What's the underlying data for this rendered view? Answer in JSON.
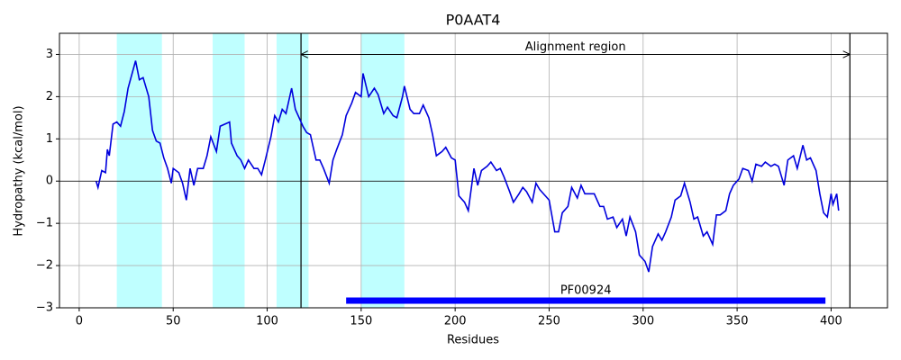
{
  "chart_data": {
    "type": "line",
    "title": "P0AAT4",
    "xlabel": "Residues",
    "ylabel": "Hydropathy (kcal/mol)",
    "xlim": [
      -10.5,
      430
    ],
    "ylim": [
      -3,
      3.5
    ],
    "xticks": [
      0,
      50,
      100,
      150,
      200,
      250,
      300,
      350,
      400
    ],
    "yticks": [
      {
        "value": -3,
        "label": "−3"
      },
      {
        "value": -2,
        "label": "−2"
      },
      {
        "value": -1,
        "label": "−1"
      },
      0,
      1,
      2,
      3
    ],
    "grid": true,
    "hline": 0,
    "regions": [
      [
        20,
        44
      ],
      [
        71,
        88
      ],
      [
        105,
        122
      ],
      [
        150,
        173
      ]
    ],
    "region_color": "#bfffff",
    "vlines": [
      118,
      410
    ],
    "annotation": {
      "text": "Alignment region",
      "x": [
        118,
        410
      ],
      "y": 3
    },
    "domain": {
      "name": "PF00924",
      "start": 142,
      "end": 397,
      "y": -2.83,
      "color": "#0000ff"
    },
    "series": [
      {
        "color": "#0000dd",
        "x": [
          9,
          10,
          12,
          14,
          15,
          16,
          18,
          20,
          22,
          24,
          26,
          30,
          32,
          34,
          37,
          39,
          41,
          43,
          45,
          47,
          49,
          50,
          53,
          55,
          57,
          59,
          61,
          63,
          66,
          68,
          70,
          73,
          75,
          80,
          81,
          84,
          86,
          88,
          90,
          93,
          95,
          97,
          99,
          102,
          104,
          106,
          108,
          110,
          113,
          115,
          117,
          119,
          121,
          123,
          126,
          128,
          130,
          133,
          135,
          137,
          140,
          142,
          145,
          147,
          150,
          151,
          154,
          157,
          159,
          162,
          164,
          167,
          169,
          172,
          173,
          176,
          178,
          181,
          183,
          186,
          188,
          190,
          193,
          195,
          198,
          200,
          202,
          205,
          207,
          210,
          212,
          214,
          217,
          219,
          222,
          224,
          226,
          229,
          231,
          234,
          236,
          238,
          241,
          243,
          245,
          248,
          250,
          253,
          255,
          257,
          260,
          262,
          265,
          267,
          269,
          272,
          274,
          277,
          279,
          281,
          284,
          286,
          289,
          291,
          293,
          296,
          298,
          301,
          303,
          305,
          308,
          310,
          312,
          315,
          317,
          320,
          322,
          325,
          327,
          329,
          332,
          334,
          337,
          339,
          341,
          344,
          346,
          348,
          351,
          353,
          356,
          358,
          360,
          363,
          365,
          368,
          370,
          372,
          375,
          377,
          380,
          382,
          385,
          387,
          389,
          392,
          394,
          396,
          398,
          400,
          401,
          403,
          404
        ],
        "values": [
          0,
          -0.15,
          0.25,
          0.2,
          0.75,
          0.6,
          1.35,
          1.4,
          1.3,
          1.65,
          2.2,
          2.85,
          2.4,
          2.45,
          2.0,
          1.2,
          0.95,
          0.9,
          0.55,
          0.3,
          -0.05,
          0.3,
          0.2,
          -0.05,
          -0.45,
          0.3,
          -0.1,
          0.3,
          0.3,
          0.6,
          1.05,
          0.7,
          1.3,
          1.4,
          0.9,
          0.6,
          0.5,
          0.3,
          0.5,
          0.3,
          0.3,
          0.15,
          0.5,
          1.05,
          1.55,
          1.4,
          1.7,
          1.6,
          2.2,
          1.7,
          1.5,
          1.3,
          1.15,
          1.1,
          0.5,
          0.5,
          0.3,
          -0.05,
          0.5,
          0.75,
          1.1,
          1.55,
          1.85,
          2.1,
          2.0,
          2.55,
          2.0,
          2.2,
          2.05,
          1.6,
          1.75,
          1.55,
          1.5,
          2.0,
          2.25,
          1.7,
          1.6,
          1.6,
          1.8,
          1.5,
          1.1,
          0.6,
          0.7,
          0.8,
          0.55,
          0.5,
          -0.35,
          -0.5,
          -0.7,
          0.3,
          -0.1,
          0.25,
          0.35,
          0.45,
          0.25,
          0.3,
          0.1,
          -0.25,
          -0.5,
          -0.3,
          -0.15,
          -0.25,
          -0.5,
          -0.05,
          -0.2,
          -0.35,
          -0.45,
          -1.2,
          -1.2,
          -0.75,
          -0.6,
          -0.15,
          -0.4,
          -0.1,
          -0.3,
          -0.3,
          -0.3,
          -0.6,
          -0.6,
          -0.9,
          -0.85,
          -1.1,
          -0.9,
          -1.3,
          -0.85,
          -1.2,
          -1.75,
          -1.9,
          -2.15,
          -1.55,
          -1.25,
          -1.4,
          -1.2,
          -0.85,
          -0.45,
          -0.35,
          -0.05,
          -0.5,
          -0.9,
          -0.85,
          -1.3,
          -1.2,
          -1.5,
          -0.8,
          -0.8,
          -0.7,
          -0.3,
          -0.1,
          0.05,
          0.3,
          0.25,
          0,
          0.4,
          0.35,
          0.45,
          0.35,
          0.4,
          0.35,
          -0.1,
          0.5,
          0.6,
          0.3,
          0.85,
          0.5,
          0.55,
          0.25,
          -0.3,
          -0.75,
          -0.85,
          -0.3,
          -0.55,
          -0.3,
          -0.7
        ]
      }
    ]
  }
}
